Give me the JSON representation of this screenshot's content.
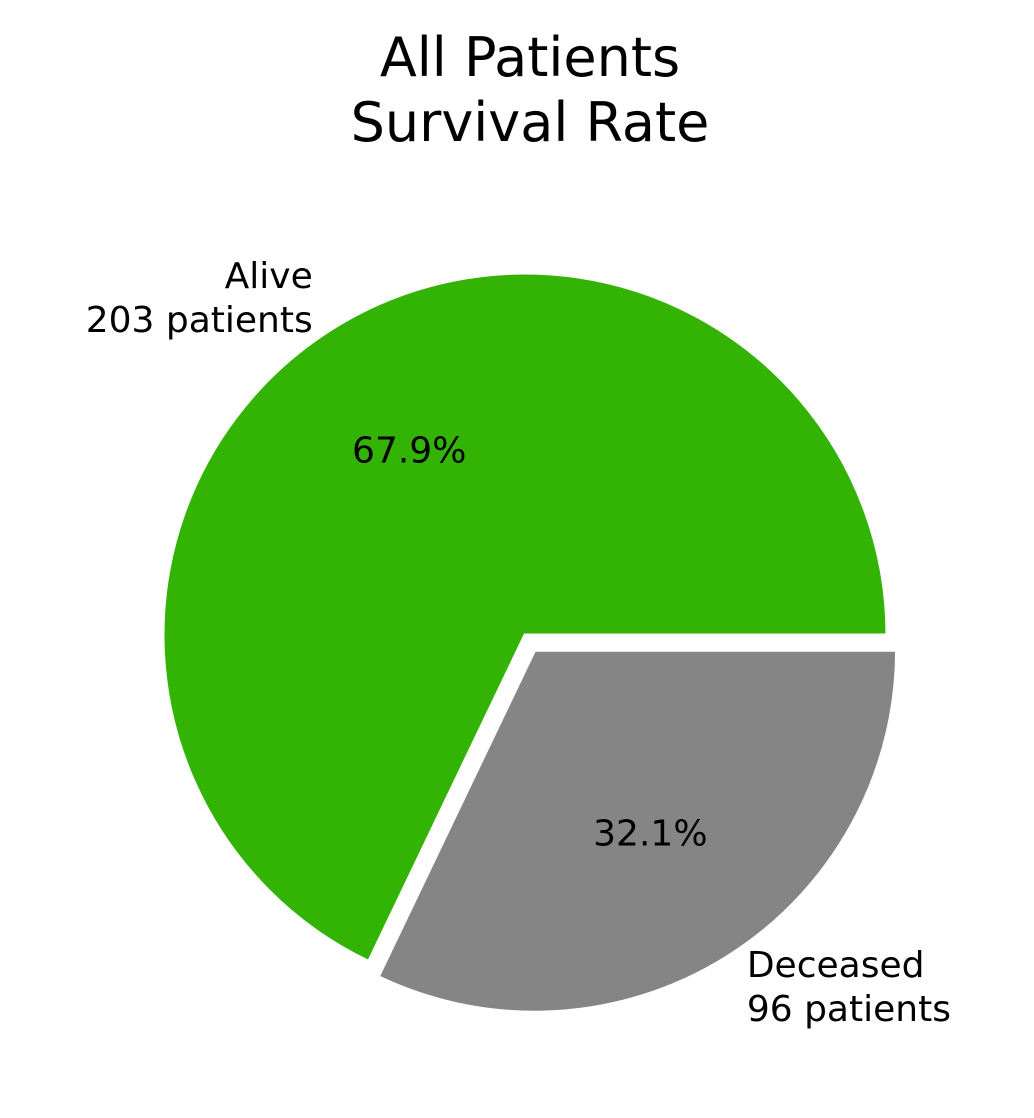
{
  "chart_data": {
    "type": "pie",
    "title": [
      "All Patients",
      "Survival Rate"
    ],
    "slices": [
      {
        "label_lines": [
          "Alive",
          "203 patients"
        ],
        "value": 203,
        "percent_label": "67.9%",
        "color": "#33b304",
        "exploded": false
      },
      {
        "label_lines": [
          "Deceased",
          "96 patients"
        ],
        "value": 96,
        "percent_label": "32.1%",
        "color": "#858585",
        "exploded": true
      }
    ],
    "start_angle_deg": 0,
    "direction": "counterclockwise",
    "edge_color": "#ffffff",
    "legend": "none"
  }
}
